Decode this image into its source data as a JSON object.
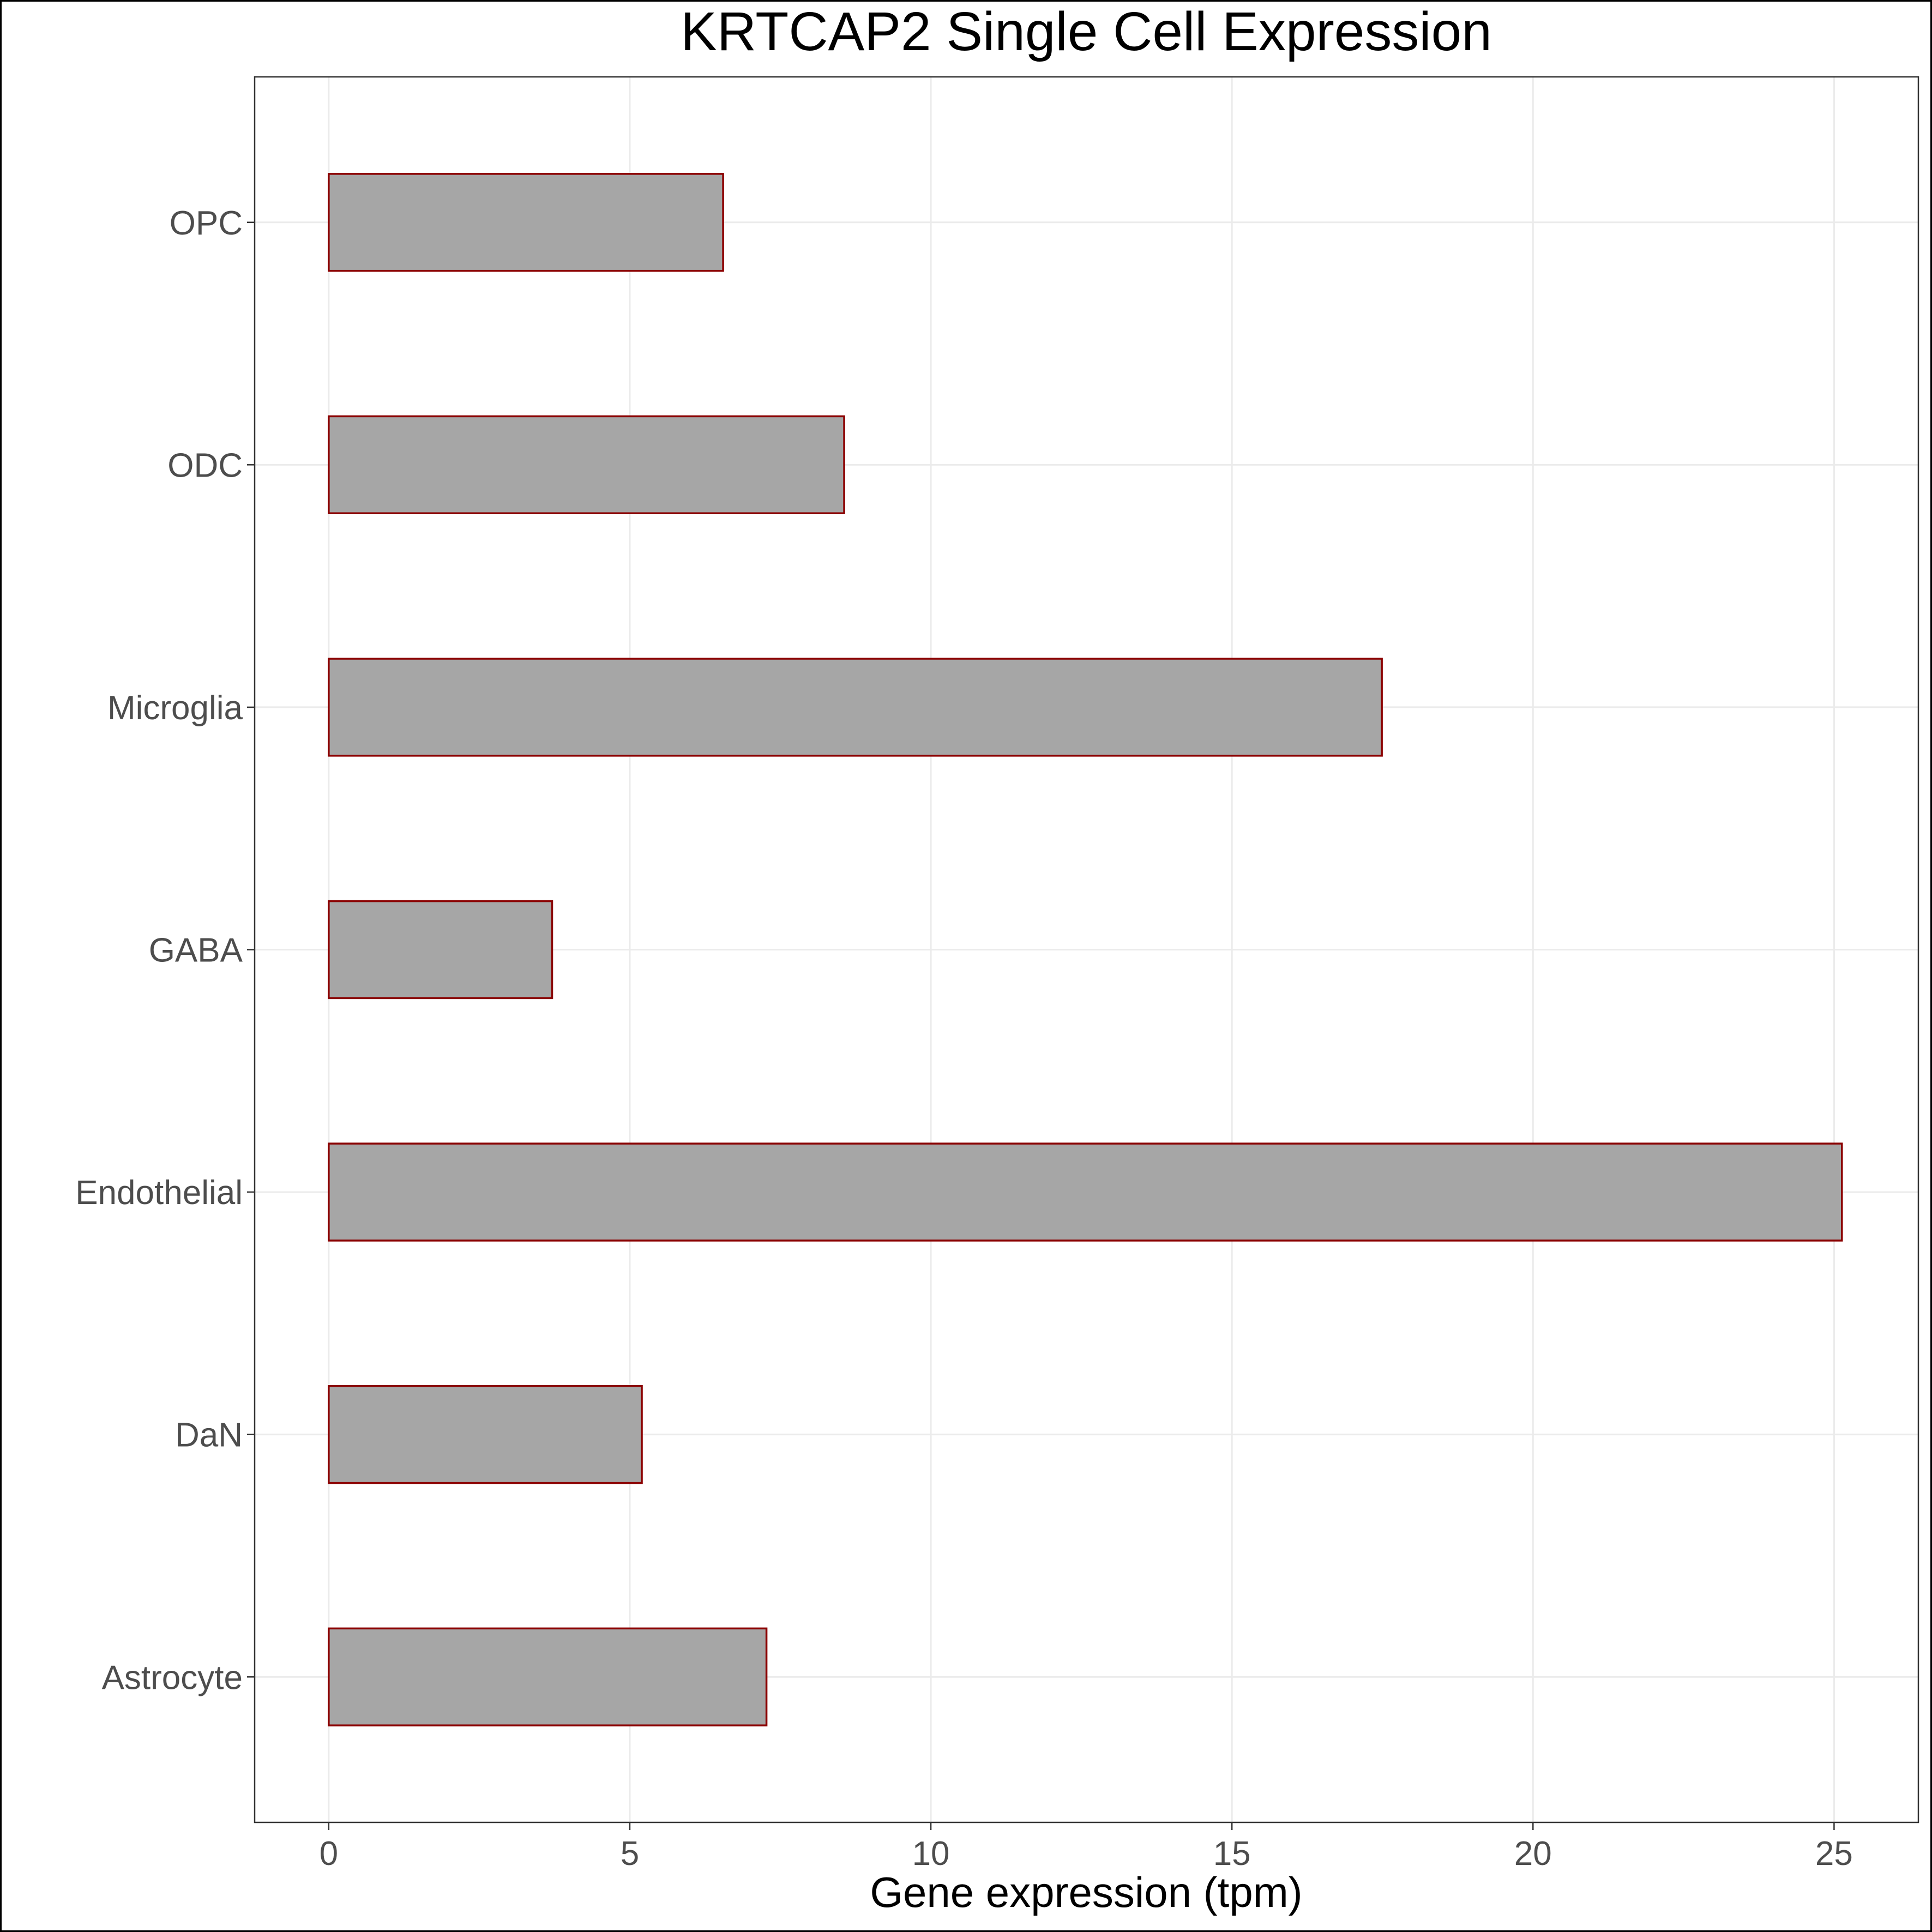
{
  "chart_data": {
    "type": "bar",
    "orientation": "horizontal",
    "title": "KRTCAP2 Single Cell Expression",
    "xlabel": "Gene expression (tpm)",
    "ylabel": "",
    "categories": [
      "Astrocyte",
      "DaN",
      "Endothelial",
      "GABA",
      "Microglia",
      "ODC",
      "OPC"
    ],
    "values": [
      7.27,
      5.2,
      25.13,
      3.71,
      17.49,
      8.56,
      6.55
    ],
    "xlim": [
      -1.23,
      26.4
    ],
    "xticks": [
      0,
      5,
      10,
      15,
      20,
      25
    ],
    "grid": true,
    "legend": "none",
    "colors": {
      "bar_fill": "#a6a6a6",
      "bar_stroke": "#8b0000",
      "grid": "#ebebeb",
      "panel_border": "#333333",
      "outer_border": "#000000",
      "tick_text": "#4d4d4d",
      "title_text": "#000000"
    }
  }
}
